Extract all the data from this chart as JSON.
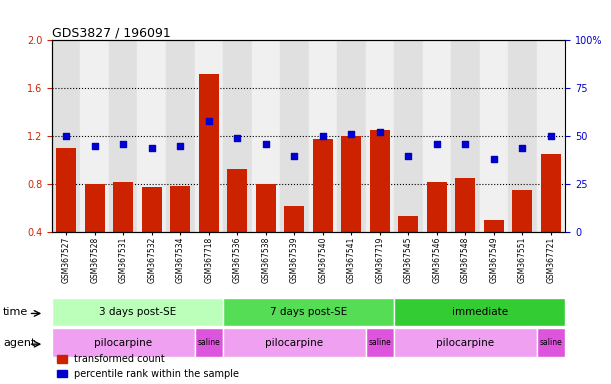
{
  "title": "GDS3827 / 196091",
  "samples": [
    "GSM367527",
    "GSM367528",
    "GSM367531",
    "GSM367532",
    "GSM367534",
    "GSM367718",
    "GSM367536",
    "GSM367538",
    "GSM367539",
    "GSM367540",
    "GSM367541",
    "GSM367719",
    "GSM367545",
    "GSM367546",
    "GSM367548",
    "GSM367549",
    "GSM367551",
    "GSM367721"
  ],
  "bar_values": [
    1.1,
    0.8,
    0.82,
    0.78,
    0.79,
    1.72,
    0.93,
    0.8,
    0.62,
    1.18,
    1.2,
    1.25,
    0.54,
    0.82,
    0.85,
    0.5,
    0.75,
    1.05
  ],
  "dot_values": [
    50,
    45,
    46,
    44,
    45,
    58,
    49,
    46,
    40,
    50,
    51,
    52,
    40,
    46,
    46,
    38,
    44,
    50
  ],
  "bar_color": "#cc2200",
  "dot_color": "#0000cc",
  "ylim_left": [
    0.4,
    2.0
  ],
  "ylim_right": [
    0,
    100
  ],
  "yticks_left": [
    0.4,
    0.8,
    1.2,
    1.6,
    2.0
  ],
  "yticks_right": [
    0,
    25,
    50,
    75,
    100
  ],
  "hlines": [
    0.8,
    1.2,
    1.6
  ],
  "col_shading_even": "#e0e0e0",
  "col_shading_odd": "#f0f0f0",
  "time_groups": [
    {
      "label": "3 days post-SE",
      "start": 0,
      "end": 6,
      "color": "#bbffbb"
    },
    {
      "label": "7 days post-SE",
      "start": 6,
      "end": 12,
      "color": "#55dd55"
    },
    {
      "label": "immediate",
      "start": 12,
      "end": 18,
      "color": "#33cc33"
    }
  ],
  "agent_groups": [
    {
      "label": "pilocarpine",
      "start": 0,
      "end": 5,
      "color": "#f0a0f0"
    },
    {
      "label": "saline",
      "start": 5,
      "end": 6,
      "color": "#dd55dd"
    },
    {
      "label": "pilocarpine",
      "start": 6,
      "end": 11,
      "color": "#f0a0f0"
    },
    {
      "label": "saline",
      "start": 11,
      "end": 12,
      "color": "#dd55dd"
    },
    {
      "label": "pilocarpine",
      "start": 12,
      "end": 17,
      "color": "#f0a0f0"
    },
    {
      "label": "saline",
      "start": 17,
      "end": 18,
      "color": "#dd55dd"
    }
  ],
  "legend_items": [
    {
      "label": "transformed count",
      "color": "#cc2200"
    },
    {
      "label": "percentile rank within the sample",
      "color": "#0000cc"
    }
  ],
  "tick_label_color_left": "#cc2200",
  "tick_label_color_right": "#0000cc"
}
